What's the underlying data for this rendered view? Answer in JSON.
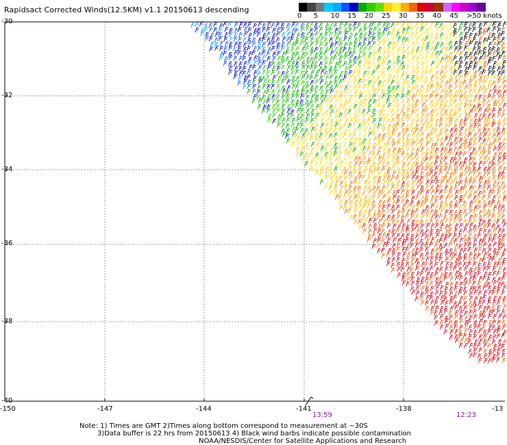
{
  "title": "Rapidsact Corrected Winds(12.5KM) v1.1 20150613 descending",
  "legend": {
    "colors": [
      "#000000",
      "#444444",
      "#777777",
      "#00ccff",
      "#00aaff",
      "#0055ff",
      "#0000cc",
      "#00aa00",
      "#33cc00",
      "#66dd00",
      "#ffd000",
      "#ffee33",
      "#ffaa00",
      "#ee6600",
      "#dd0000",
      "#cc0033",
      "#993300",
      "#cc66ff",
      "#ff00ff",
      "#cc00cc",
      "#9900cc",
      "#660099"
    ],
    "labels": [
      "0",
      "5",
      "10",
      "15",
      "20",
      "25",
      "30",
      "35",
      "40",
      "45",
      ">50 knots"
    ]
  },
  "lat_labels": [
    "-30",
    "-32",
    "-34",
    "-36",
    "-38",
    "-40"
  ],
  "lon_labels": [
    "-150",
    "-147",
    "-144",
    "-141",
    "-138",
    "-13"
  ],
  "times": [
    "13:59",
    "12:23"
  ],
  "footer": {
    "line1": "Note: 1) Times are GMT 2)Times along bottom correspond to measurement at −30S",
    "line2": "3)Data buffer is 22 hrs from 20150613 4) Black wind barbs indicate possible contamination",
    "line3": "NOAA/NESDIS/Center for Satellite Applications and Research"
  }
}
